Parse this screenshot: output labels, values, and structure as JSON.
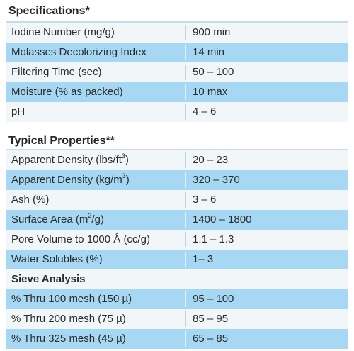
{
  "specifications": {
    "heading": "Specifications*",
    "rows": [
      {
        "label": "Iodine Number (mg/g)",
        "value": "900 min"
      },
      {
        "label": "Molasses Decolorizing Index",
        "value": "14 min"
      },
      {
        "label": "Filtering Time (sec)",
        "value": "50 – 100"
      },
      {
        "label": "Moisture (% as packed)",
        "value": "10 max"
      },
      {
        "label": "pH",
        "value": "4 – 6"
      }
    ]
  },
  "typical_properties": {
    "heading": "Typical Properties**",
    "rows": [
      {
        "label_pre": "Apparent Density (lbs/ft",
        "sup": "3",
        "label_post": ")",
        "value": "20 – 23"
      },
      {
        "label_pre": "Apparent Density (kg/m",
        "sup": "3",
        "label_post": ")",
        "value": "320 – 370"
      },
      {
        "label": "Ash (%)",
        "value": "3 – 6"
      },
      {
        "label_pre": "Surface Area (m",
        "sup": "2",
        "label_post": "/g)",
        "value": "1400 – 1800"
      },
      {
        "label": "Pore Volume to 1000 Å (cc/g)",
        "value": "1.1 – 1.3"
      },
      {
        "label": "Water Solubles (%)",
        "value": "1– 3"
      }
    ]
  },
  "sieve_analysis": {
    "heading": "Sieve Analysis",
    "rows": [
      {
        "label": "% Thru 100 mesh (150 µ)",
        "value": "95 – 100"
      },
      {
        "label": "% Thru 200 mesh (75 µ)",
        "value": "85 – 95"
      },
      {
        "label": "% Thru 325 mesh (45 µ)",
        "value": "65 – 85"
      }
    ]
  },
  "colors": {
    "row_light": "#f1f6f9",
    "row_blue": "#a6d8f3",
    "rule": "#c9dbe6",
    "text": "#2b2b2b"
  }
}
